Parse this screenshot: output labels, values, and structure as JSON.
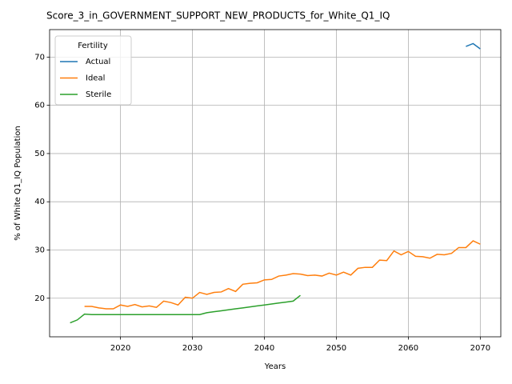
{
  "chart_data": {
    "type": "line",
    "title": "Score_3_in_GOVERNMENT_SUPPORT_NEW_PRODUCTS_for_White_Q1_IQ",
    "xlabel": "Years",
    "ylabel": "% of White Q1_IQ Population",
    "x": [
      2013,
      2014,
      2015,
      2016,
      2017,
      2018,
      2019,
      2020,
      2021,
      2022,
      2023,
      2024,
      2025,
      2026,
      2027,
      2028,
      2029,
      2030,
      2031,
      2032,
      2033,
      2034,
      2035,
      2036,
      2037,
      2038,
      2039,
      2040,
      2041,
      2042,
      2043,
      2044,
      2045,
      2046,
      2047,
      2048,
      2049,
      2050,
      2051,
      2052,
      2053,
      2054,
      2055,
      2056,
      2057,
      2058,
      2059,
      2060,
      2061,
      2062,
      2063,
      2064,
      2065,
      2066,
      2067,
      2068,
      2069,
      2070
    ],
    "series": [
      {
        "name": "Actual",
        "color": "#1f77b4",
        "values": [
          null,
          null,
          null,
          null,
          null,
          null,
          null,
          null,
          null,
          null,
          null,
          null,
          null,
          null,
          null,
          null,
          null,
          null,
          null,
          null,
          null,
          null,
          null,
          null,
          null,
          null,
          null,
          null,
          null,
          null,
          null,
          null,
          null,
          null,
          null,
          null,
          null,
          null,
          null,
          null,
          null,
          null,
          null,
          null,
          null,
          null,
          null,
          null,
          null,
          null,
          null,
          null,
          null,
          null,
          null,
          72.2,
          72.8,
          71.7
        ]
      },
      {
        "name": "Ideal",
        "color": "#ff7f0e",
        "values": [
          null,
          null,
          18.3,
          18.3,
          18.0,
          17.8,
          17.8,
          18.6,
          18.3,
          18.7,
          18.2,
          18.4,
          18.1,
          19.4,
          19.1,
          18.6,
          20.2,
          20.0,
          21.2,
          20.8,
          21.2,
          21.3,
          22.0,
          21.4,
          22.9,
          23.1,
          23.2,
          23.8,
          23.9,
          24.6,
          24.8,
          25.1,
          25.0,
          24.7,
          24.8,
          24.6,
          25.2,
          24.8,
          25.4,
          24.8,
          26.2,
          26.4,
          26.4,
          27.9,
          27.8,
          29.8,
          29.0,
          29.7,
          28.7,
          28.6,
          28.3,
          29.1,
          29.0,
          29.3,
          30.5,
          30.5,
          31.9,
          31.2
        ]
      },
      {
        "name": "Sterile",
        "color": "#2ca02c",
        "values": [
          14.9,
          15.5,
          16.7,
          16.6,
          16.6,
          16.6,
          16.6,
          16.6,
          16.6,
          16.6,
          16.6,
          16.6,
          16.6,
          16.6,
          16.6,
          16.6,
          16.6,
          16.6,
          16.6,
          17.0,
          17.2,
          17.4,
          17.6,
          17.8,
          18.0,
          18.2,
          18.4,
          18.6,
          18.8,
          19.0,
          19.2,
          19.4,
          20.6,
          null,
          null,
          null,
          null,
          null,
          null,
          null,
          null,
          null,
          null,
          null,
          null,
          null,
          null,
          null,
          null,
          null,
          null,
          null,
          null,
          null,
          null,
          null,
          null,
          null
        ]
      }
    ],
    "legend_title": "Fertility",
    "legend": "upper left",
    "xlim": [
      2010.15,
      2072.85
    ],
    "ylim": [
      12,
      75.7
    ],
    "xticks": [
      2020,
      2030,
      2040,
      2050,
      2060,
      2070
    ],
    "yticks": [
      20,
      30,
      40,
      50,
      60,
      70
    ],
    "grid": true
  }
}
